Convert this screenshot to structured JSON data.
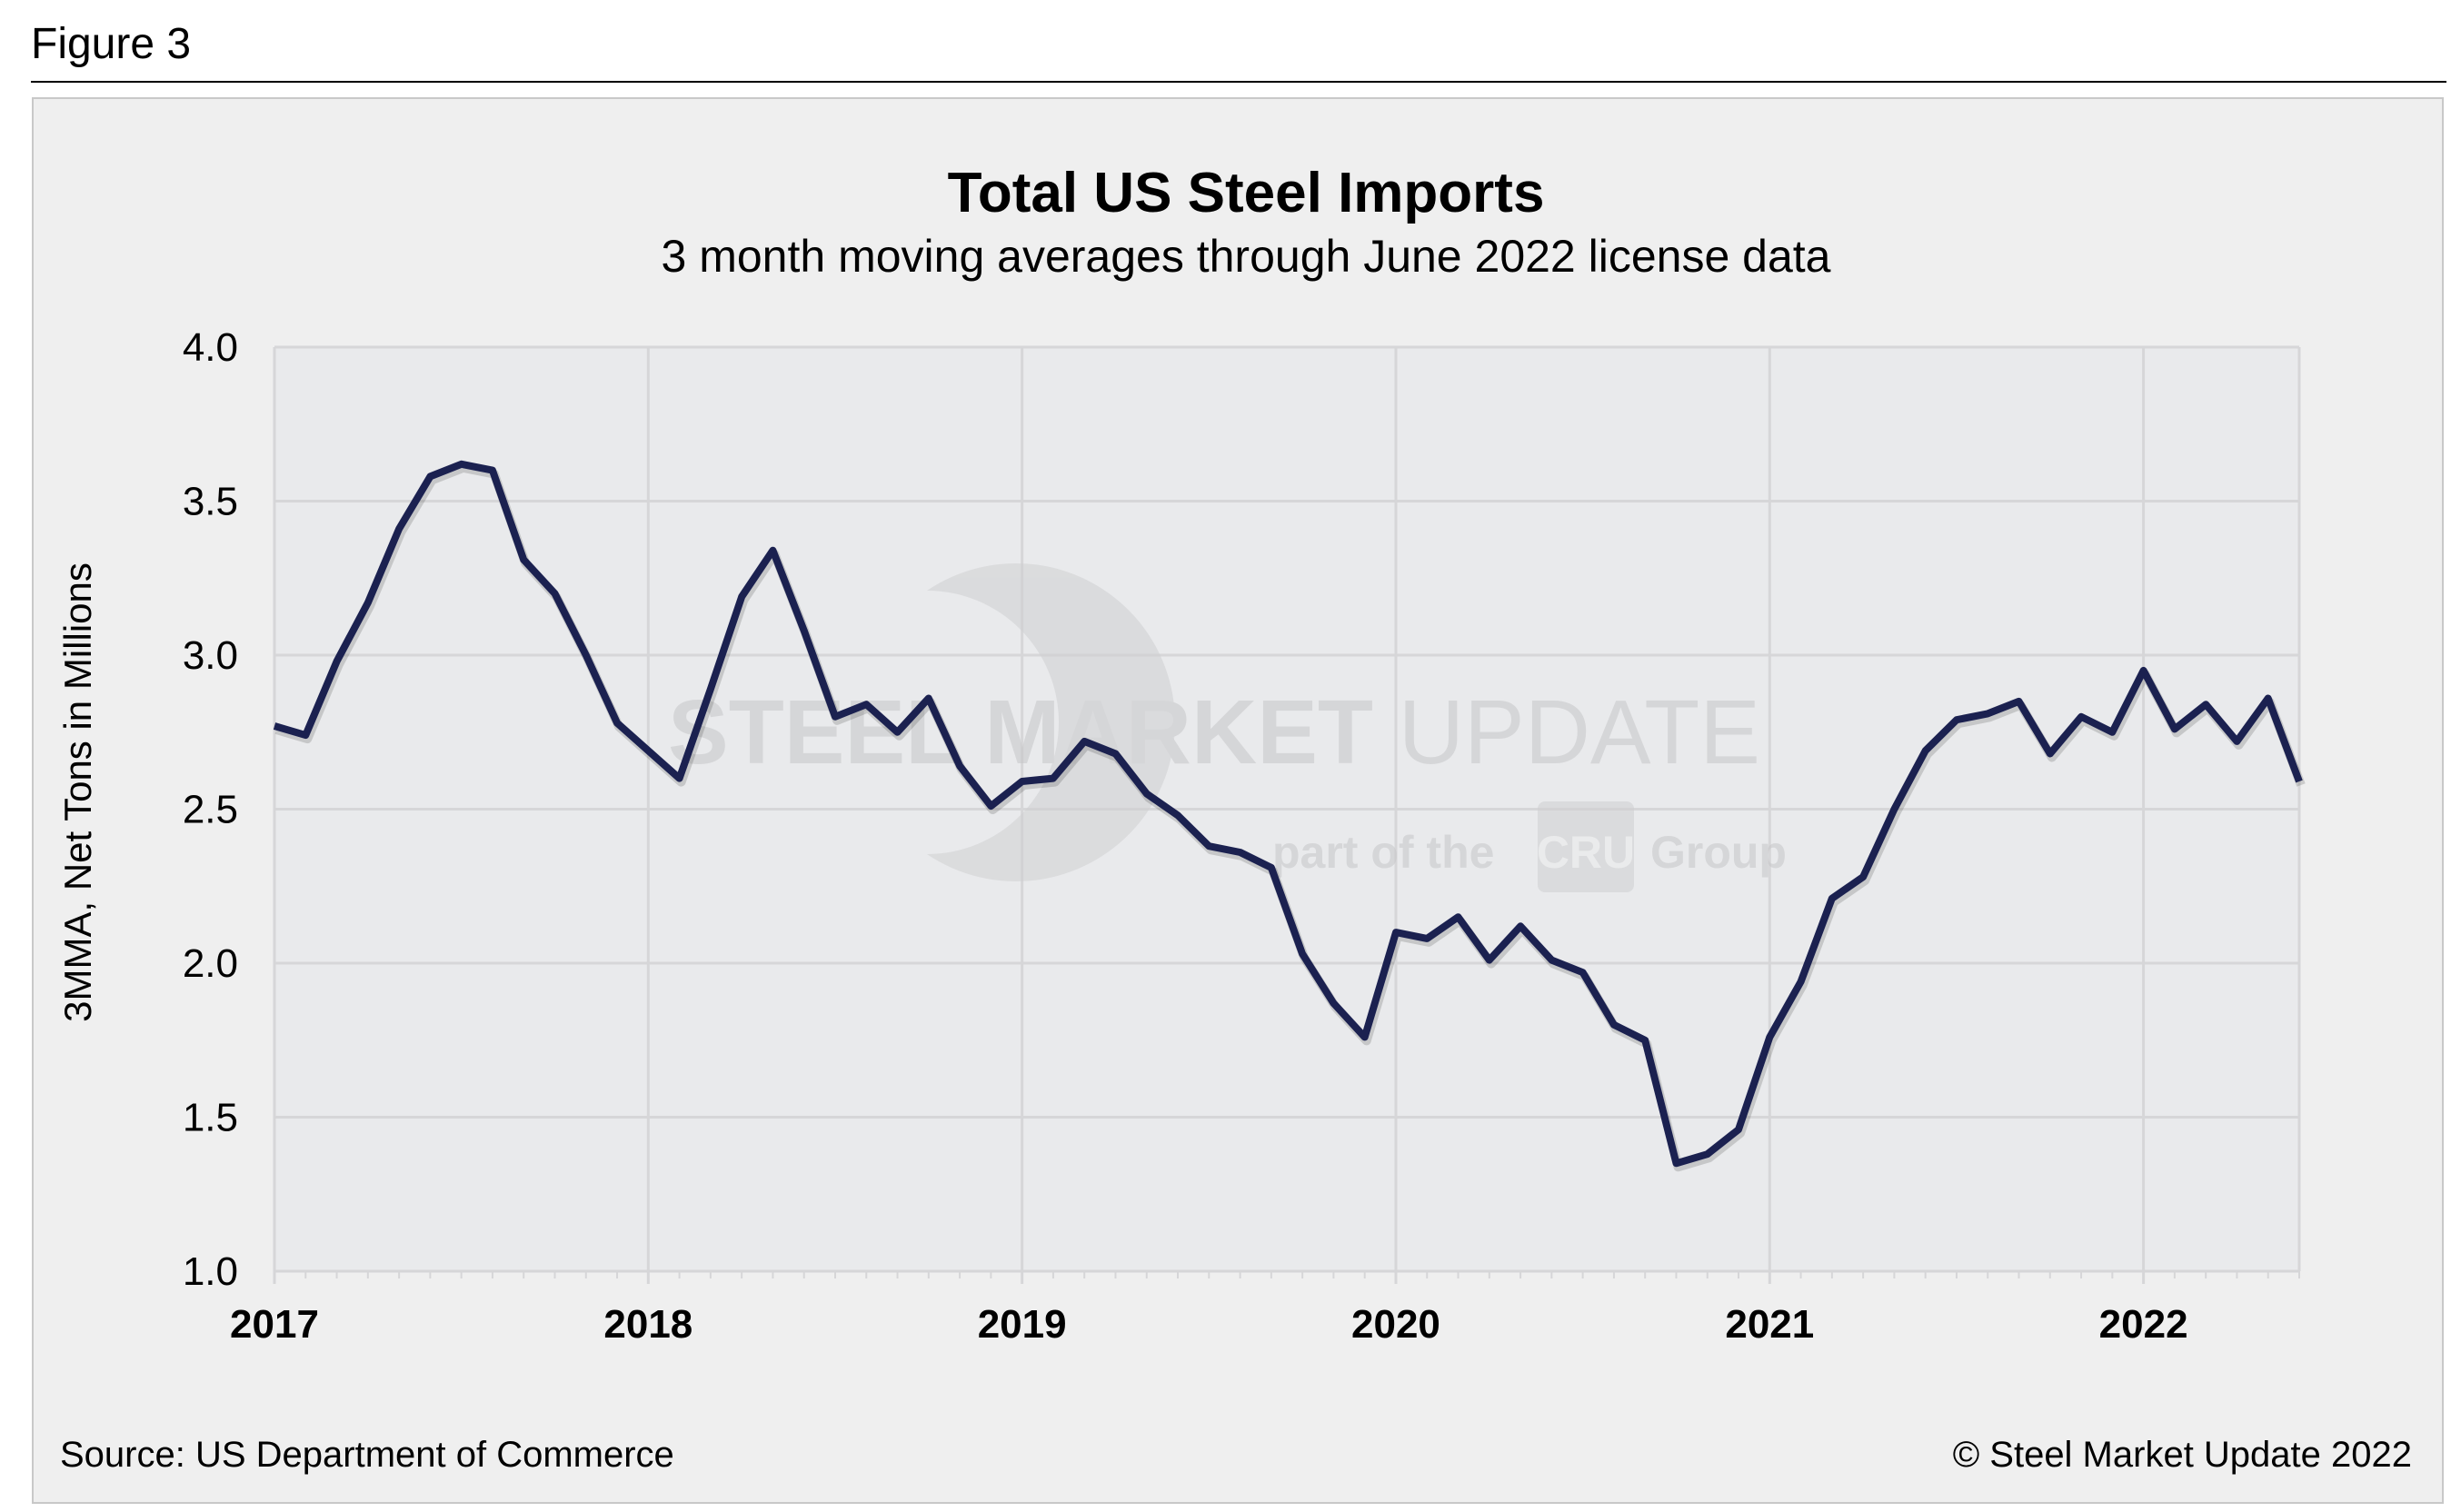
{
  "figure_label": "Figure 3",
  "source": "Source: US Department of Commerce",
  "copyright": "© Steel Market Update 2022",
  "watermark": {
    "line1_bold": "STEEL MARKET",
    "line1_light": "UPDATE",
    "line2_pre": "part of the",
    "line2_logo": "CRU",
    "line2_post": "Group"
  },
  "colors": {
    "line": "#1b2150",
    "plot_bg": "#e9eaec",
    "panel_bg": "#efefef",
    "grid": "#d6d6d8"
  },
  "chart_data": {
    "type": "line",
    "title": "Total US Steel Imports",
    "subtitle": "3 month moving averages through June 2022 license data",
    "xlabel": "",
    "ylabel": "3MMA, Net Tons in Millions",
    "ylim": [
      1.0,
      4.0
    ],
    "yticks": [
      "1.0",
      "1.5",
      "2.0",
      "2.5",
      "3.0",
      "3.5",
      "4.0"
    ],
    "xticks": [
      "2017",
      "2018",
      "2019",
      "2020",
      "2021",
      "2022"
    ],
    "x_start": "2017-01",
    "x_end": "2022-06",
    "grid": true,
    "legend": "none",
    "series": [
      {
        "values": [
          2.77,
          2.74,
          2.98,
          3.17,
          3.41,
          3.58,
          3.62,
          3.6,
          3.31,
          3.2,
          3.0,
          2.78,
          2.69,
          2.6,
          2.89,
          3.19,
          3.34,
          3.08,
          2.8,
          2.84,
          2.75,
          2.86,
          2.64,
          2.51,
          2.59,
          2.6,
          2.72,
          2.68,
          2.55,
          2.48,
          2.38,
          2.36,
          2.31,
          2.03,
          1.87,
          1.76,
          2.1,
          2.08,
          2.15,
          2.01,
          2.12,
          2.01,
          1.97,
          1.8,
          1.75,
          1.35,
          1.38,
          1.46,
          1.76,
          1.94,
          2.21,
          2.28,
          2.5,
          2.69,
          2.79,
          2.81,
          2.85,
          2.68,
          2.8,
          2.75,
          2.95,
          2.76,
          2.84,
          2.72,
          2.86,
          2.59
        ]
      }
    ]
  }
}
